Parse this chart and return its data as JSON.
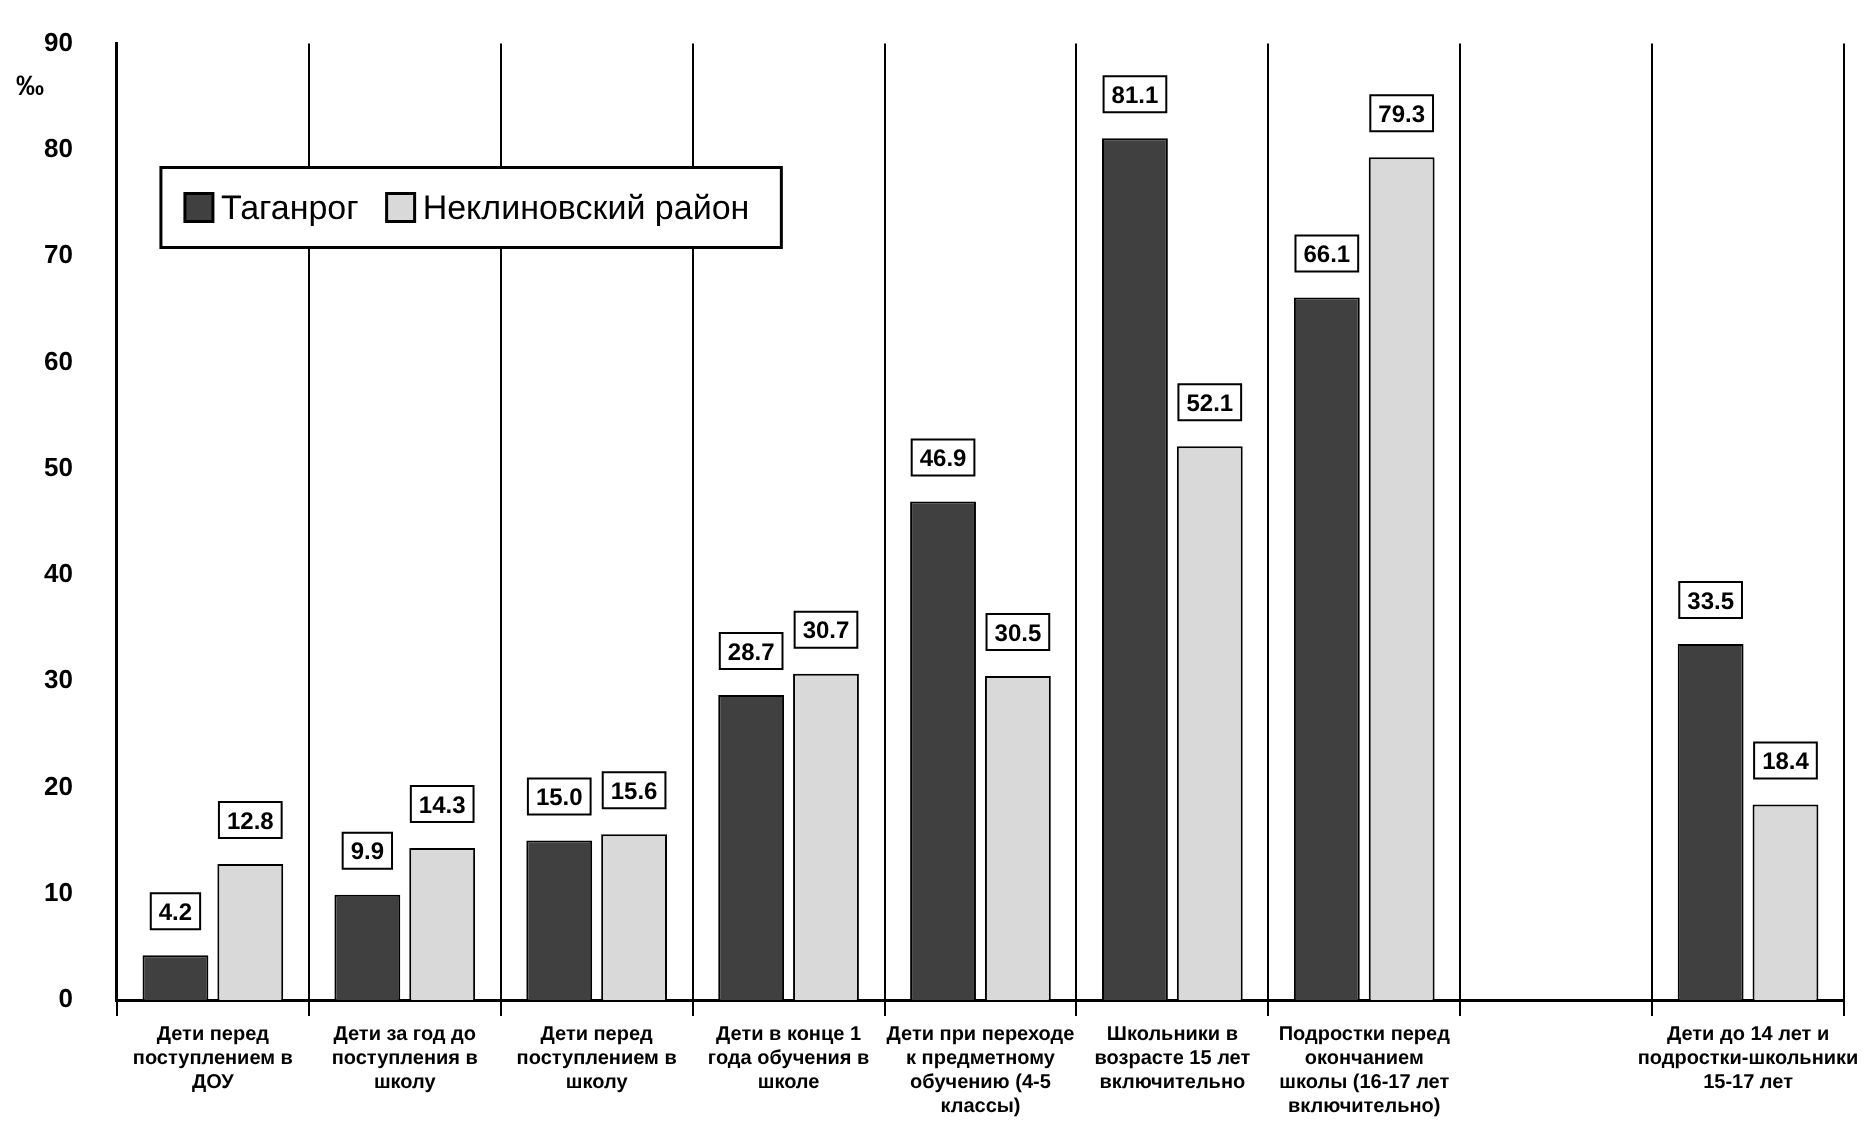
{
  "chart_data": {
    "type": "bar",
    "ylabel": "‰",
    "categories": [
      "Дети перед поступлением в ДОУ",
      "Дети за год до поступления в школу",
      "Дети перед поступлением в школу",
      "Дети в конце 1 года обучения в школе",
      "Дети при переходе к предметному обучению (4-5 классы)",
      "Школьники в возрасте 15 лет включительно",
      "Подростки перед окончанием школы (16-17 лет включительно)",
      null,
      "Дети до 14 лет и подростки-школьники 15-17 лет"
    ],
    "series": [
      {
        "name": "Таганрог",
        "color": "#404040",
        "values": [
          4.2,
          9.9,
          15.0,
          28.7,
          46.9,
          81.1,
          66.1,
          null,
          33.5
        ]
      },
      {
        "name": "Неклиновский район",
        "color": "#d9d9d9",
        "values": [
          12.8,
          14.3,
          15.6,
          30.7,
          30.5,
          52.1,
          79.3,
          null,
          18.4
        ]
      }
    ],
    "value_labels": [
      [
        "4.2",
        "9.9",
        "15.0",
        "28.7",
        "46.9",
        "81.1",
        "66.1",
        null,
        "33.5"
      ],
      [
        "12.8",
        "14.3",
        "15.6",
        "30.7",
        "30.5",
        "52.1",
        "79.3",
        null,
        "18.4"
      ]
    ],
    "ylim": [
      0,
      90
    ],
    "yticks": [
      0,
      10,
      20,
      30,
      40,
      50,
      60,
      70,
      80,
      90
    ],
    "grid": "x",
    "legend": "top left"
  }
}
